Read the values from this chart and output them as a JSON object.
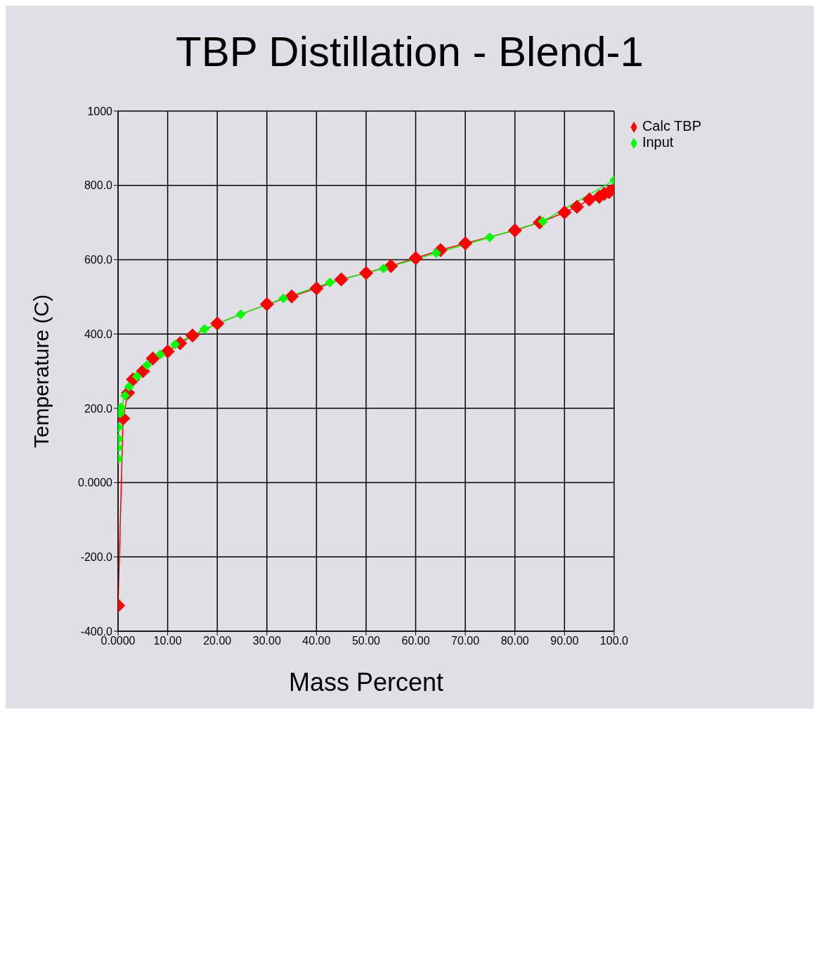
{
  "chart_data": {
    "type": "line",
    "title": "TBP Distillation - Blend-1",
    "xlabel": "Mass Percent",
    "ylabel": "Temperature (C)",
    "xlim": [
      0,
      100
    ],
    "xticks": [
      {
        "value": 0,
        "label": "0.0000"
      },
      {
        "value": 10,
        "label": "10.00"
      },
      {
        "value": 20,
        "label": "20.00"
      },
      {
        "value": 30,
        "label": "30.00"
      },
      {
        "value": 40,
        "label": "40.00"
      },
      {
        "value": 50,
        "label": "50.00"
      },
      {
        "value": 60,
        "label": "60.00"
      },
      {
        "value": 70,
        "label": "70.00"
      },
      {
        "value": 80,
        "label": "80.00"
      },
      {
        "value": 90,
        "label": "90.00"
      },
      {
        "value": 100,
        "label": "100.0"
      }
    ],
    "ylim": [
      -400,
      1000
    ],
    "yticks": [
      {
        "value": -400,
        "label": "-400.0"
      },
      {
        "value": -200,
        "label": "-200.0"
      },
      {
        "value": 0,
        "label": "0.0000"
      },
      {
        "value": 200,
        "label": "200.0"
      },
      {
        "value": 400,
        "label": "400.0"
      },
      {
        "value": 600,
        "label": "600.0"
      },
      {
        "value": 800,
        "label": "800.0"
      },
      1000
    ],
    "grid": true,
    "legend": "top right",
    "marker": "diamond",
    "line_style": "solid",
    "series": [
      {
        "name": "Calc TBP",
        "color": "#ff0000",
        "x": [
          0,
          1,
          2,
          3,
          5,
          7,
          10,
          12.5,
          15,
          20,
          30,
          35,
          40,
          45,
          50,
          55,
          60,
          65,
          70,
          80,
          85,
          90,
          92.5,
          95,
          97,
          98,
          99,
          100
        ],
        "values": [
          -331,
          173,
          242,
          278,
          300,
          334,
          353,
          375,
          396,
          428,
          480,
          501,
          523,
          547,
          564,
          583,
          604,
          626,
          644,
          679,
          700,
          727,
          742,
          762,
          769,
          777,
          782,
          790
        ]
      },
      {
        "name": "Input",
        "color": "#00ff00",
        "x": [
          0,
          0,
          0.1,
          0.1,
          0.4,
          0.6,
          1.4,
          2.2,
          3.8,
          5.8,
          8.5,
          11.5,
          17.4,
          24.7,
          33.3,
          42.7,
          53.5,
          64.1,
          74.9,
          85.6,
          100
        ],
        "values": [
          64,
          94,
          118,
          149,
          186,
          202,
          234,
          258,
          286,
          316,
          345,
          372,
          413,
          453,
          496,
          539,
          576,
          618,
          660,
          703,
          814
        ]
      }
    ]
  }
}
